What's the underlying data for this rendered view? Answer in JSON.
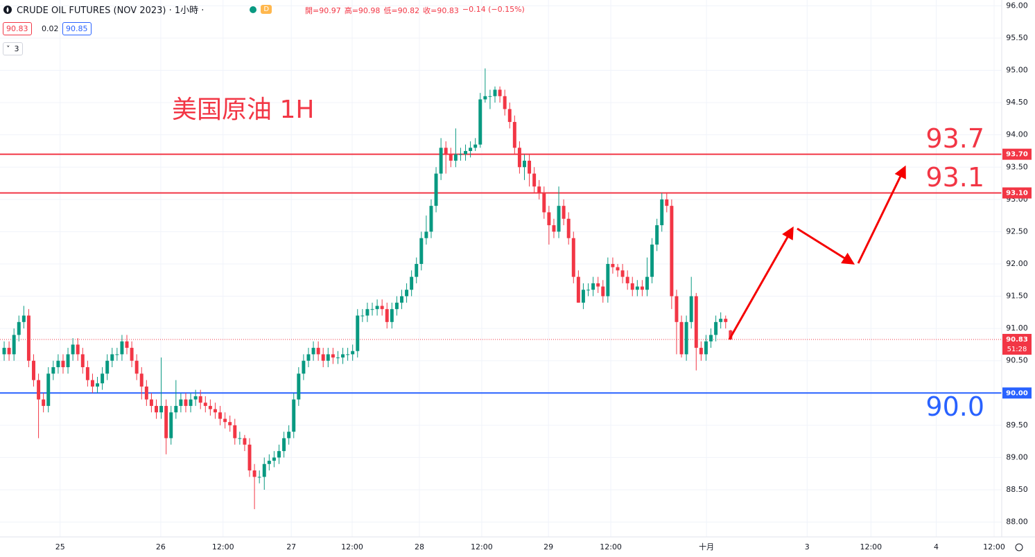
{
  "header": {
    "symbol": "CRUDE OIL FUTURES (NOV 2023) · 1小時 ·",
    "badge": "D",
    "ohlc": [
      "開=90.97",
      "高=90.98",
      "低=90.82",
      "收=90.83",
      "−0.14 (−0.15%)"
    ],
    "bid": 90.83,
    "spread": 0.02,
    "ask": 90.85,
    "indicators": "3"
  },
  "chart_data": {
    "type": "candlestick",
    "annotation": "美国原油 1H",
    "up_color": "#089981",
    "down_color": "#f23645",
    "open": [
      90.6,
      90.7,
      90.6,
      90.9,
      91.1,
      91.2,
      90.5,
      90.2,
      89.9,
      89.8,
      90.3,
      90.4,
      90.5,
      90.4,
      90.6,
      90.75,
      90.6,
      90.4,
      90.2,
      90.1,
      90.15,
      90.3,
      90.5,
      90.6,
      90.6,
      90.8,
      90.7,
      90.5,
      90.3,
      90.1,
      89.9,
      89.8,
      89.7,
      89.8,
      89.3,
      89.7,
      89.8,
      89.9,
      89.8,
      89.9,
      89.95,
      89.85,
      89.8,
      89.75,
      89.7,
      89.6,
      89.55,
      89.5,
      89.3,
      89.3,
      89.2,
      88.8,
      88.7,
      88.7,
      88.9,
      88.95,
      89.0,
      89.1,
      89.3,
      89.4,
      89.9,
      90.3,
      90.5,
      90.6,
      90.7,
      90.6,
      90.5,
      90.6,
      90.55,
      90.55,
      90.6,
      90.6,
      90.65,
      91.2,
      91.2,
      91.3,
      91.3,
      91.35,
      91.3,
      91.1,
      91.3,
      91.4,
      91.5,
      91.6,
      91.8,
      92.0,
      92.4,
      92.5,
      92.9,
      93.4,
      93.8,
      93.7,
      93.6,
      93.7,
      93.7,
      93.75,
      93.8,
      93.85,
      94.55,
      94.6,
      94.6,
      94.7,
      94.6,
      94.4,
      94.2,
      93.8,
      93.5,
      93.6,
      93.4,
      93.2,
      93.1,
      92.8,
      92.6,
      92.5,
      92.9,
      92.7,
      92.4,
      91.8,
      91.4,
      91.6,
      91.6,
      91.7,
      91.65,
      91.5,
      92.0,
      91.95,
      91.9,
      91.8,
      91.7,
      91.6,
      91.65,
      91.6,
      91.8,
      92.3,
      92.6,
      93.0,
      92.9,
      91.5,
      91.1,
      90.6,
      91.1,
      91.5,
      90.7,
      90.6,
      90.8,
      90.9,
      91.1,
      91.15,
      90.97
    ],
    "high": [
      90.8,
      90.8,
      91.0,
      91.2,
      91.35,
      91.3,
      90.6,
      90.3,
      90.0,
      90.4,
      90.5,
      90.6,
      90.6,
      90.7,
      90.85,
      90.85,
      90.7,
      90.5,
      90.3,
      90.25,
      90.4,
      90.6,
      90.7,
      90.7,
      90.9,
      90.9,
      90.8,
      90.6,
      90.4,
      90.2,
      90.0,
      89.9,
      90.55,
      89.9,
      89.8,
      90.2,
      90.0,
      90.0,
      90.0,
      90.05,
      90.05,
      89.95,
      89.9,
      89.85,
      89.8,
      89.7,
      89.65,
      89.6,
      89.4,
      89.35,
      89.3,
      88.9,
      88.8,
      89.0,
      89.05,
      89.1,
      89.2,
      89.4,
      89.5,
      90.0,
      90.4,
      90.6,
      90.7,
      90.8,
      90.8,
      90.7,
      90.7,
      90.7,
      90.65,
      90.7,
      90.7,
      90.75,
      91.3,
      91.3,
      91.4,
      91.4,
      91.45,
      91.45,
      91.4,
      91.4,
      91.5,
      91.6,
      91.7,
      91.9,
      92.1,
      92.5,
      92.75,
      93.0,
      93.5,
      93.95,
      93.9,
      93.8,
      94.1,
      93.8,
      93.85,
      93.9,
      93.95,
      94.65,
      95.03,
      94.7,
      94.75,
      94.75,
      94.7,
      94.5,
      94.3,
      93.9,
      93.7,
      93.7,
      93.5,
      93.3,
      93.2,
      92.9,
      92.7,
      93.2,
      93.0,
      92.8,
      92.5,
      91.9,
      91.7,
      91.7,
      91.8,
      91.8,
      91.75,
      92.1,
      92.1,
      92.0,
      92.0,
      91.9,
      91.8,
      91.75,
      91.75,
      92.1,
      92.4,
      92.7,
      93.1,
      93.1,
      93.0,
      91.6,
      91.2,
      91.2,
      91.8,
      91.55,
      90.8,
      90.9,
      91.0,
      91.2,
      91.25,
      91.2,
      90.98
    ],
    "low": [
      90.5,
      90.5,
      90.5,
      90.8,
      91.0,
      90.4,
      90.1,
      89.3,
      89.7,
      89.7,
      90.2,
      90.3,
      90.3,
      90.3,
      90.5,
      90.5,
      90.3,
      90.1,
      90.0,
      90.0,
      90.05,
      90.2,
      90.4,
      90.5,
      90.5,
      90.6,
      90.4,
      90.2,
      89.9,
      89.8,
      89.7,
      89.6,
      89.6,
      89.05,
      89.2,
      89.6,
      89.7,
      89.7,
      89.7,
      89.8,
      89.75,
      89.7,
      89.65,
      89.6,
      89.5,
      89.45,
      89.4,
      89.2,
      89.2,
      89.1,
      88.7,
      88.2,
      88.6,
      88.5,
      88.8,
      88.85,
      88.9,
      89.0,
      89.2,
      89.3,
      89.8,
      90.2,
      90.4,
      90.5,
      90.5,
      90.4,
      90.4,
      90.45,
      90.45,
      90.45,
      90.5,
      90.5,
      90.55,
      91.1,
      91.1,
      91.2,
      91.2,
      91.2,
      91.0,
      91.0,
      91.2,
      91.3,
      91.4,
      91.5,
      91.7,
      91.9,
      92.3,
      92.4,
      92.8,
      93.3,
      93.4,
      93.5,
      93.5,
      93.6,
      93.6,
      93.65,
      93.75,
      93.8,
      94.5,
      94.4,
      94.5,
      94.5,
      94.3,
      94.1,
      93.7,
      93.4,
      93.3,
      93.2,
      93.1,
      93.0,
      92.7,
      92.3,
      92.4,
      92.4,
      92.6,
      92.3,
      91.7,
      91.4,
      91.3,
      91.5,
      91.5,
      91.55,
      91.4,
      91.4,
      91.85,
      91.8,
      91.7,
      91.6,
      91.5,
      91.5,
      91.5,
      91.5,
      91.7,
      92.2,
      92.5,
      92.8,
      91.3,
      90.6,
      90.55,
      90.5,
      91.0,
      90.35,
      90.5,
      90.5,
      90.7,
      90.8,
      91.0,
      91.0,
      90.82
    ],
    "close": [
      90.7,
      90.6,
      90.9,
      91.1,
      91.2,
      90.5,
      90.2,
      89.9,
      89.8,
      90.3,
      90.4,
      90.5,
      90.4,
      90.6,
      90.75,
      90.6,
      90.4,
      90.2,
      90.1,
      90.15,
      90.3,
      90.5,
      90.6,
      90.6,
      90.8,
      90.7,
      90.5,
      90.3,
      90.1,
      89.9,
      89.8,
      89.7,
      89.8,
      89.3,
      89.7,
      89.8,
      89.9,
      89.8,
      89.9,
      89.95,
      89.85,
      89.8,
      89.75,
      89.7,
      89.6,
      89.55,
      89.5,
      89.3,
      89.3,
      89.2,
      88.8,
      88.7,
      88.7,
      88.9,
      88.95,
      89.0,
      89.1,
      89.3,
      89.4,
      89.9,
      90.3,
      90.5,
      90.6,
      90.7,
      90.6,
      90.5,
      90.6,
      90.55,
      90.55,
      90.6,
      90.6,
      90.65,
      91.2,
      91.2,
      91.3,
      91.3,
      91.35,
      91.3,
      91.1,
      91.3,
      91.4,
      91.5,
      91.6,
      91.8,
      92.0,
      92.4,
      92.5,
      92.9,
      93.4,
      93.8,
      93.7,
      93.6,
      93.7,
      93.7,
      93.75,
      93.8,
      93.85,
      94.55,
      94.6,
      94.6,
      94.7,
      94.6,
      94.4,
      94.2,
      93.8,
      93.5,
      93.6,
      93.4,
      93.2,
      93.1,
      92.8,
      92.6,
      92.5,
      92.9,
      92.7,
      92.4,
      91.8,
      91.4,
      91.6,
      91.6,
      91.7,
      91.65,
      91.5,
      92.0,
      91.95,
      91.9,
      91.8,
      91.7,
      91.6,
      91.65,
      91.6,
      91.8,
      92.3,
      92.6,
      93.0,
      92.9,
      91.5,
      91.1,
      90.6,
      91.1,
      91.5,
      90.7,
      90.6,
      90.8,
      90.9,
      91.1,
      91.15,
      91.1,
      90.83
    ],
    "xlim": [
      -0.85,
      203.25
    ],
    "xticks": [
      {
        "value": 11.4,
        "label": "25"
      },
      {
        "value": 31.9,
        "label": "26"
      },
      {
        "value": 44.6,
        "label": "12:00"
      },
      {
        "value": 58.5,
        "label": "27"
      },
      {
        "value": 70.9,
        "label": "12:00"
      },
      {
        "value": 84.6,
        "label": "28"
      },
      {
        "value": 97.3,
        "label": "12:00"
      },
      {
        "value": 110.9,
        "label": "29"
      },
      {
        "value": 123.6,
        "label": "12:00"
      },
      {
        "value": 143.1,
        "label": "十月"
      },
      {
        "value": 163.6,
        "label": "3"
      },
      {
        "value": 176.6,
        "label": "12:00"
      },
      {
        "value": 189.9,
        "label": "4"
      },
      {
        "value": 201.7,
        "label": "12:00"
      }
    ],
    "ylim": [
      87.77,
      96.09
    ],
    "yticks": [
      {
        "value": 88,
        "label": "88.00"
      },
      {
        "value": 88.5,
        "label": "88.50"
      },
      {
        "value": 89,
        "label": "89.00"
      },
      {
        "value": 89.5,
        "label": "89.50"
      },
      {
        "value": 90,
        "label": "90.00"
      },
      {
        "value": 90.5,
        "label": "90.50"
      },
      {
        "value": 91,
        "label": "91.00"
      },
      {
        "value": 91.5,
        "label": "91.50"
      },
      {
        "value": 92,
        "label": "92.00"
      },
      {
        "value": 92.5,
        "label": "92.50"
      },
      {
        "value": 93,
        "label": "93.00"
      },
      {
        "value": 93.5,
        "label": "93.50"
      },
      {
        "value": 94,
        "label": "94.00"
      },
      {
        "value": 94.5,
        "label": "94.50"
      },
      {
        "value": 95,
        "label": "95.00"
      },
      {
        "value": 95.5,
        "label": "95.50"
      },
      {
        "value": 96,
        "label": "96.00"
      }
    ],
    "grid": true,
    "levels": [
      {
        "value": 93.7,
        "label": "93.7",
        "axis_label": "93.70",
        "color": "#f23645",
        "label_position": "above"
      },
      {
        "value": 93.1,
        "label": "93.1",
        "axis_label": "93.10",
        "color": "#f23645",
        "label_position": "above"
      },
      {
        "value": 90.0,
        "label": "90.0",
        "axis_label": "90.00",
        "color": "#2962ff",
        "label_position": "below"
      }
    ],
    "last_price": {
      "value": 90.83,
      "countdown": "51:28",
      "color": "#f23645"
    }
  }
}
